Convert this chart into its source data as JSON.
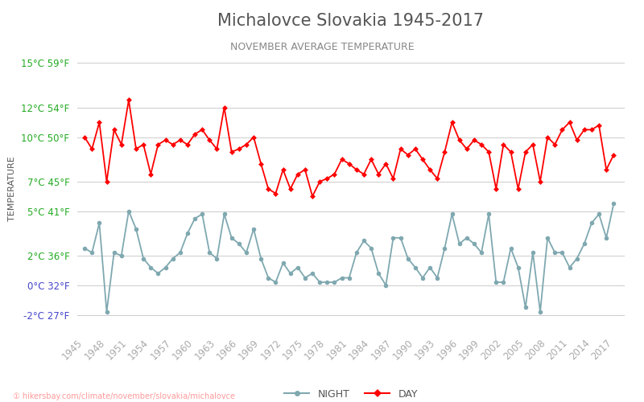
{
  "title": "Michalovce Slovakia 1945-2017",
  "subtitle": "NOVEMBER AVERAGE TEMPERATURE",
  "ylabel": "TEMPERATURE",
  "ylim": [
    -3,
    16
  ],
  "yticks_celsius": [
    -2,
    0,
    2,
    5,
    7,
    10,
    12,
    15
  ],
  "yticks_fahrenheit": [
    27,
    32,
    36,
    41,
    45,
    50,
    54,
    59
  ],
  "years": [
    1945,
    1946,
    1947,
    1948,
    1949,
    1950,
    1951,
    1952,
    1953,
    1954,
    1955,
    1956,
    1957,
    1958,
    1959,
    1960,
    1961,
    1962,
    1963,
    1964,
    1965,
    1966,
    1967,
    1968,
    1969,
    1970,
    1971,
    1972,
    1973,
    1974,
    1975,
    1976,
    1977,
    1978,
    1979,
    1980,
    1981,
    1982,
    1983,
    1984,
    1985,
    1986,
    1987,
    1988,
    1989,
    1990,
    1991,
    1992,
    1993,
    1994,
    1995,
    1996,
    1997,
    1998,
    1999,
    2000,
    2001,
    2002,
    2003,
    2004,
    2005,
    2006,
    2007,
    2008,
    2009,
    2010,
    2011,
    2012,
    2013,
    2014,
    2015,
    2016,
    2017
  ],
  "day_temps": [
    10.0,
    9.2,
    11.0,
    7.0,
    10.5,
    9.5,
    12.5,
    9.2,
    9.5,
    7.5,
    9.5,
    9.8,
    9.5,
    9.8,
    9.5,
    10.2,
    10.5,
    9.8,
    9.2,
    12.0,
    9.0,
    9.2,
    9.5,
    10.0,
    8.2,
    6.5,
    6.2,
    7.8,
    6.5,
    7.5,
    7.8,
    6.0,
    7.0,
    7.2,
    7.5,
    8.5,
    8.2,
    7.8,
    7.5,
    8.5,
    7.5,
    8.2,
    7.2,
    9.2,
    8.8,
    9.2,
    8.5,
    7.8,
    7.2,
    9.0,
    11.0,
    9.8,
    9.2,
    9.8,
    9.5,
    9.0,
    6.5,
    9.5,
    9.0,
    6.5,
    9.0,
    9.5,
    7.0,
    10.0,
    9.5,
    10.5,
    11.0,
    9.8,
    10.5,
    10.5,
    10.8,
    7.8,
    8.8
  ],
  "night_temps": [
    2.5,
    2.2,
    4.2,
    -1.8,
    2.2,
    2.0,
    5.0,
    3.8,
    1.8,
    1.2,
    0.8,
    1.2,
    1.8,
    2.2,
    3.5,
    4.5,
    4.8,
    2.2,
    1.8,
    4.8,
    3.2,
    2.8,
    2.2,
    3.8,
    1.8,
    0.5,
    0.2,
    1.5,
    0.8,
    1.2,
    0.5,
    0.8,
    0.2,
    0.2,
    0.2,
    0.5,
    0.5,
    2.2,
    3.0,
    2.5,
    0.8,
    0.0,
    3.2,
    3.2,
    1.8,
    1.2,
    0.5,
    1.2,
    0.5,
    2.5,
    4.8,
    2.8,
    3.2,
    2.8,
    2.2,
    4.8,
    0.2,
    0.2,
    2.5,
    1.2,
    -1.5,
    2.2,
    -1.8,
    3.2,
    2.2,
    2.2,
    1.2,
    1.8,
    2.8,
    4.2,
    4.8,
    3.2,
    5.5
  ],
  "day_color": "#ff0000",
  "night_color": "#7fa8b0",
  "bg_color": "#ffffff",
  "grid_color": "#cccccc",
  "title_color": "#555555",
  "subtitle_color": "#888888",
  "ylabel_color": "#555555",
  "ytick_green_color": "#22aa22",
  "ytick_blue_color": "#4444cc",
  "xtick_color": "#aaaaaa",
  "legend_night_label": "NIGHT",
  "legend_day_label": "DAY",
  "url_text": "① hikersbay.com/climate/november/slovakia/michalovce",
  "title_fontsize": 15,
  "subtitle_fontsize": 9,
  "ylabel_fontsize": 8,
  "tick_fontsize": 8.5,
  "legend_fontsize": 9
}
